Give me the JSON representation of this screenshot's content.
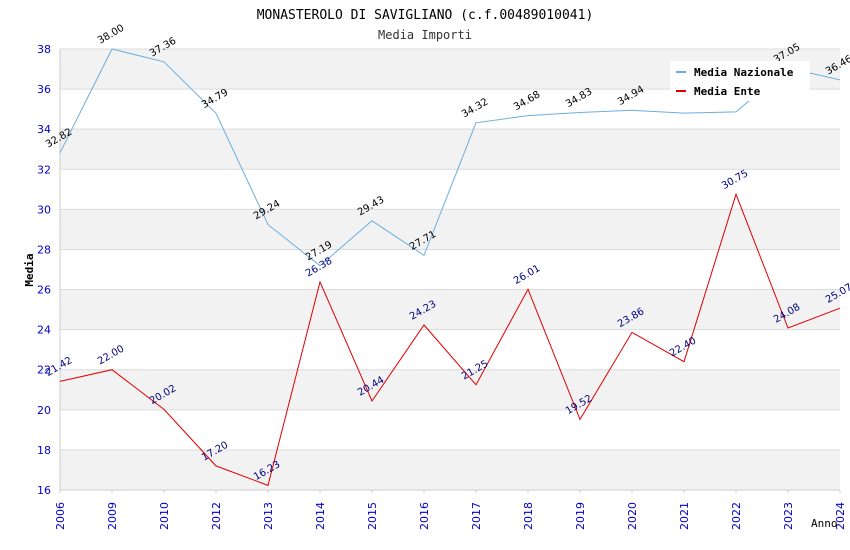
{
  "chart_data": {
    "type": "line",
    "title": "MONASTEROLO DI SAVIGLIANO (c.f.00489010041)",
    "subtitle": "Media Importi",
    "xlabel": "Anno",
    "ylabel": "Media",
    "ylim": [
      16,
      38
    ],
    "yticks": [
      16,
      18,
      20,
      22,
      24,
      26,
      28,
      30,
      32,
      34,
      36,
      38
    ],
    "categories": [
      "2006",
      "2009",
      "2010",
      "2012",
      "2013",
      "2014",
      "2015",
      "2016",
      "2017",
      "2018",
      "2019",
      "2020",
      "2021",
      "2022",
      "2023",
      "2024"
    ],
    "series": [
      {
        "name": "Media Nazionale",
        "color": "#6aaee0",
        "label_color": "#000000",
        "values": [
          32.82,
          38.0,
          37.36,
          34.79,
          29.24,
          27.19,
          29.43,
          27.71,
          34.32,
          34.68,
          34.83,
          34.94,
          34.8,
          34.86,
          37.05,
          36.46
        ],
        "labels": [
          "32.82",
          "38.00",
          "37.36",
          "34.79",
          "29.24",
          "27.19",
          "29.43",
          "27.71",
          "34.32",
          "34.68",
          "34.83",
          "34.94",
          "",
          "",
          "37.05",
          "36.46"
        ]
      },
      {
        "name": "Media Ente",
        "color": "#e00000",
        "label_color": "#000080",
        "values": [
          21.42,
          22.0,
          20.02,
          17.2,
          16.23,
          26.38,
          20.44,
          24.23,
          21.25,
          26.01,
          19.52,
          23.86,
          22.4,
          30.75,
          24.08,
          25.07
        ],
        "labels": [
          "21.42",
          "22.00",
          "20.02",
          "17.20",
          "16.23",
          "26.38",
          "20.44",
          "24.23",
          "21.25",
          "26.01",
          "19.52",
          "23.86",
          "22.40",
          "30.75",
          "24.08",
          "25.07"
        ]
      }
    ],
    "grid": "horizontal bands",
    "legend": "top-right"
  }
}
